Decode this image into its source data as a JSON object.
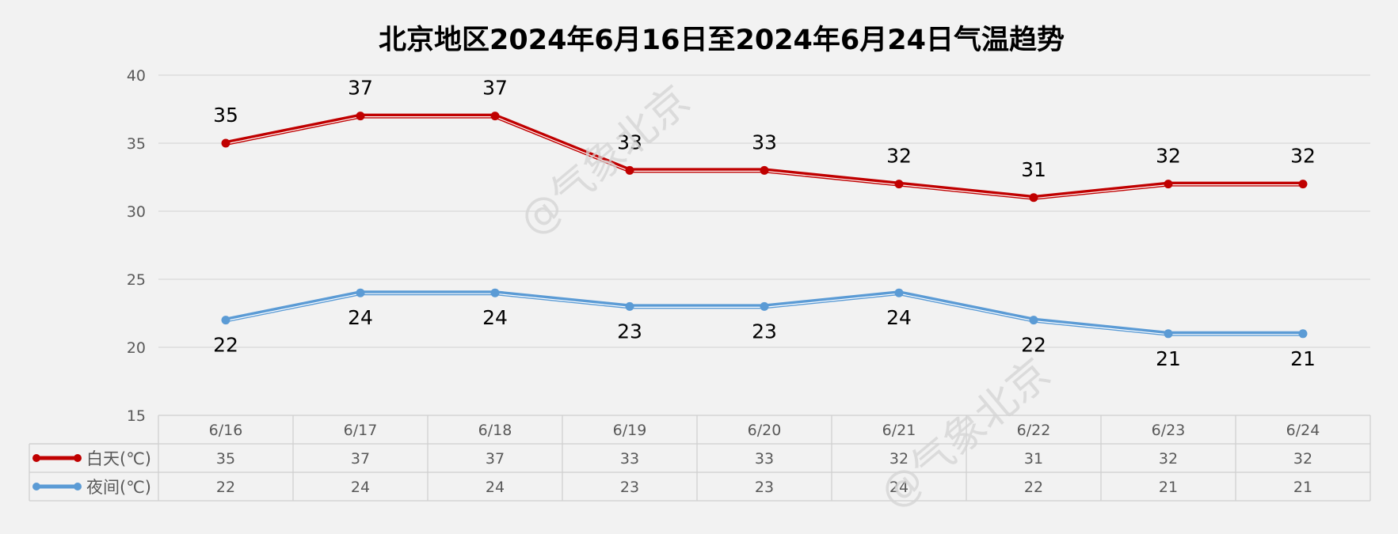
{
  "chart_data": {
    "type": "line",
    "title": "北京地区2024年6月16日至2024年6月24日气温趋势",
    "categories": [
      "6/16",
      "6/17",
      "6/18",
      "6/19",
      "6/20",
      "6/21",
      "6/22",
      "6/23",
      "6/24"
    ],
    "series": [
      {
        "name": "白天(℃)",
        "values": [
          35,
          37,
          37,
          33,
          33,
          32,
          31,
          32,
          32
        ],
        "color": "#c00000",
        "label_position": "above"
      },
      {
        "name": "夜间(℃)",
        "values": [
          22,
          24,
          24,
          23,
          23,
          24,
          22,
          21,
          21
        ],
        "color": "#5b9bd5",
        "label_position": "below"
      }
    ],
    "ylim": [
      15,
      40
    ],
    "yticks": [
      15,
      20,
      25,
      30,
      35,
      40
    ],
    "grid": true,
    "legend": "data-table",
    "watermark": "@气象北京"
  }
}
